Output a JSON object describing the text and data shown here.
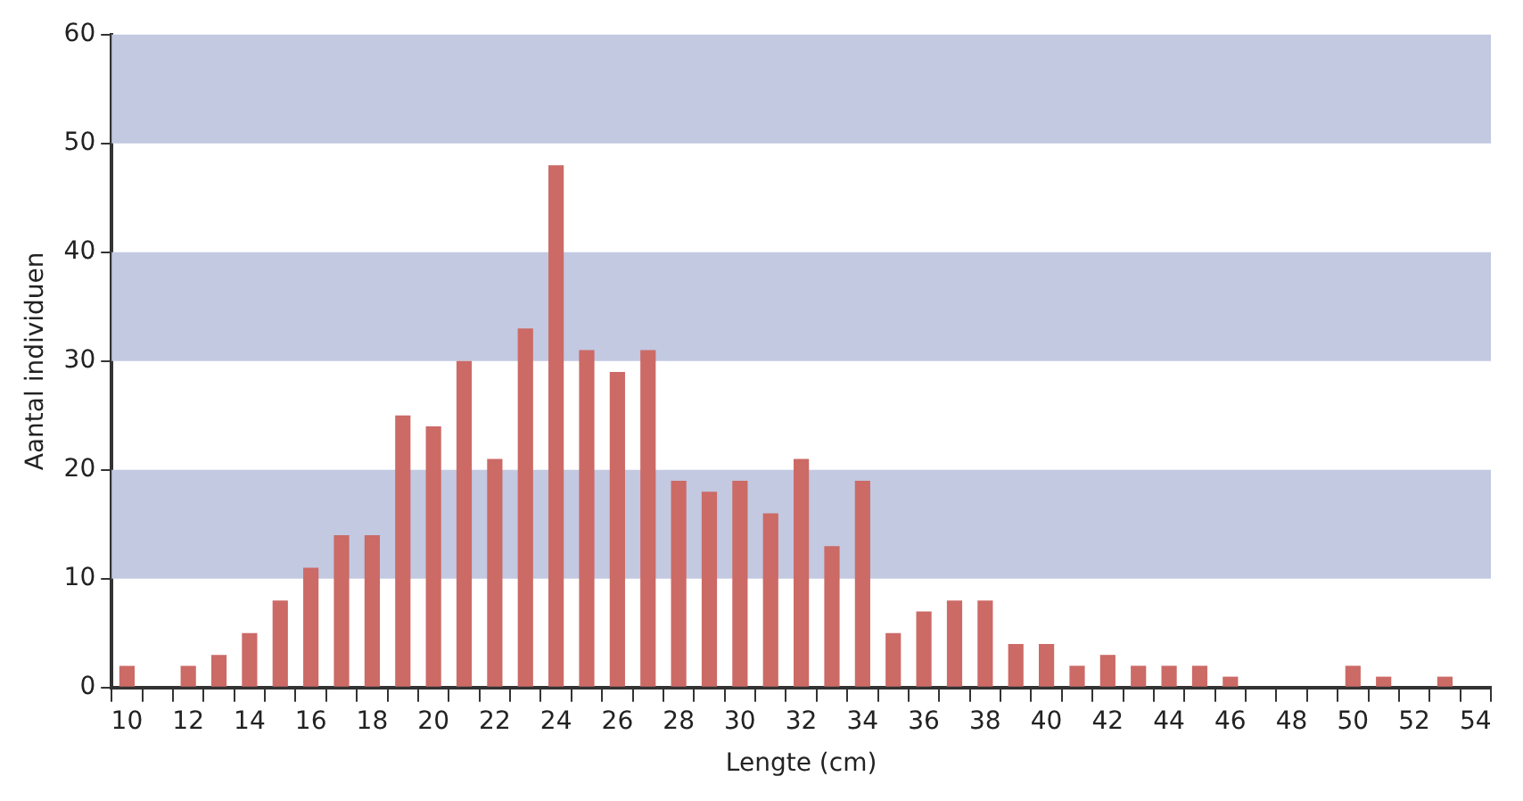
{
  "chart_data": {
    "type": "bar",
    "xlabel": "Lengte (cm)",
    "ylabel": "Aantal individuen",
    "categories": [
      "10",
      null,
      "12",
      null,
      "14",
      null,
      "16",
      null,
      "18",
      null,
      "20",
      null,
      "22",
      null,
      "24",
      null,
      "26",
      null,
      "28",
      null,
      "30",
      null,
      "32",
      null,
      "34",
      null,
      "36",
      null,
      "38",
      null,
      "40",
      null,
      "42",
      null,
      "44",
      null,
      "46",
      null,
      "48",
      null,
      "50",
      null,
      "52",
      null,
      "54"
    ],
    "values": [
      2,
      0,
      2,
      3,
      5,
      8,
      11,
      14,
      14,
      25,
      24,
      30,
      21,
      33,
      48,
      31,
      29,
      31,
      19,
      18,
      19,
      16,
      21,
      13,
      19,
      5,
      7,
      8,
      8,
      4,
      4,
      2,
      3,
      2,
      2,
      2,
      1,
      0,
      0,
      0,
      2,
      1,
      0,
      1,
      0
    ],
    "color": "#cc6a66",
    "ylim": [
      0,
      60
    ],
    "yticks": [
      0,
      10,
      20,
      30,
      40,
      50,
      60
    ],
    "grid": false,
    "legend": false,
    "bands": [
      {
        "axis": "y",
        "from": 10,
        "to": 20,
        "color": "#c2c9e1"
      },
      {
        "axis": "y",
        "from": 30,
        "to": 40,
        "color": "#c2c9e1"
      },
      {
        "axis": "y",
        "from": 50,
        "to": 60,
        "color": "#c2c9e1"
      }
    ]
  }
}
